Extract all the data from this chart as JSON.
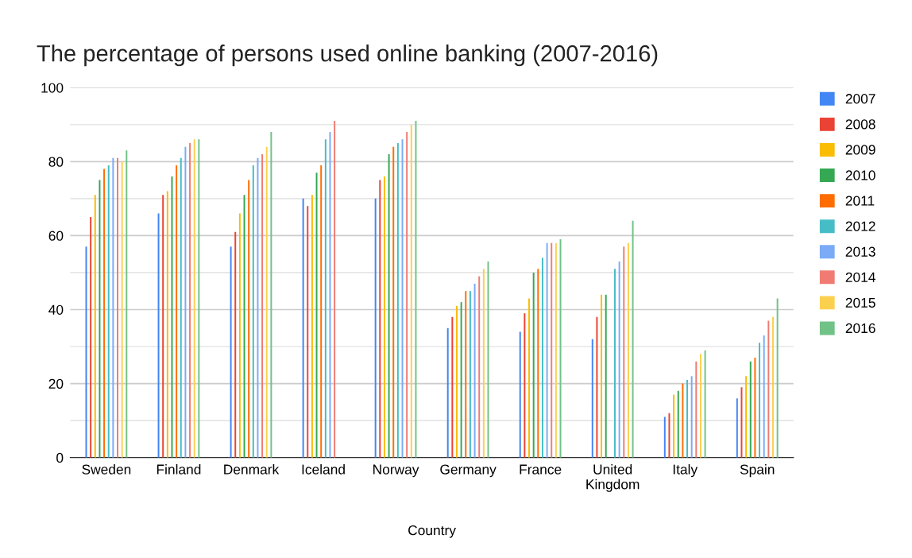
{
  "chart_data": {
    "type": "bar",
    "title": "The percentage of persons used online banking (2007-2016)",
    "xlabel": "Country",
    "categories": [
      "Sweden",
      "Finland",
      "Denmark",
      "Iceland",
      "Norway",
      "Germany",
      "France",
      "United\nKingdom",
      "Italy",
      "Spain"
    ],
    "series": [
      {
        "name": "2007",
        "color": "#4285f4",
        "values": [
          57,
          66,
          57,
          70,
          70,
          35,
          34,
          32,
          11,
          16
        ]
      },
      {
        "name": "2008",
        "color": "#ea4335",
        "values": [
          65,
          71,
          61,
          68,
          75,
          38,
          39,
          38,
          12,
          19
        ]
      },
      {
        "name": "2009",
        "color": "#fbbc04",
        "values": [
          71,
          72,
          66,
          71,
          76,
          41,
          43,
          44,
          17,
          22
        ]
      },
      {
        "name": "2010",
        "color": "#34a853",
        "values": [
          75,
          76,
          71,
          77,
          82,
          42,
          50,
          44,
          18,
          26
        ]
      },
      {
        "name": "2011",
        "color": "#ff6d01",
        "values": [
          78,
          79,
          75,
          79,
          84,
          45,
          51,
          null,
          20,
          27
        ]
      },
      {
        "name": "2012",
        "color": "#46bdc6",
        "values": [
          79,
          81,
          79,
          86,
          85,
          45,
          54,
          51,
          21,
          31
        ]
      },
      {
        "name": "2013",
        "color": "#7baaf7",
        "values": [
          81,
          84,
          81,
          88,
          86,
          47,
          58,
          53,
          22,
          33
        ]
      },
      {
        "name": "2014",
        "color": "#f07b72",
        "values": [
          81,
          85,
          82,
          91,
          88,
          49,
          58,
          57,
          26,
          37
        ]
      },
      {
        "name": "2015",
        "color": "#fcd04f",
        "values": [
          80,
          86,
          84,
          null,
          90,
          51,
          58,
          58,
          28,
          38
        ]
      },
      {
        "name": "2016",
        "color": "#71c287",
        "values": [
          83,
          86,
          88,
          null,
          91,
          53,
          59,
          64,
          29,
          43
        ]
      }
    ],
    "ylim": [
      0,
      100
    ],
    "yticks": [
      0,
      {
        "value": 10,
        "label": null
      },
      20,
      {
        "value": 30,
        "label": null
      },
      40,
      {
        "value": 50,
        "label": null
      },
      60,
      {
        "value": 70,
        "label": null
      },
      80,
      {
        "value": 90,
        "label": null
      },
      100
    ],
    "grid": "y",
    "legend": "right"
  }
}
